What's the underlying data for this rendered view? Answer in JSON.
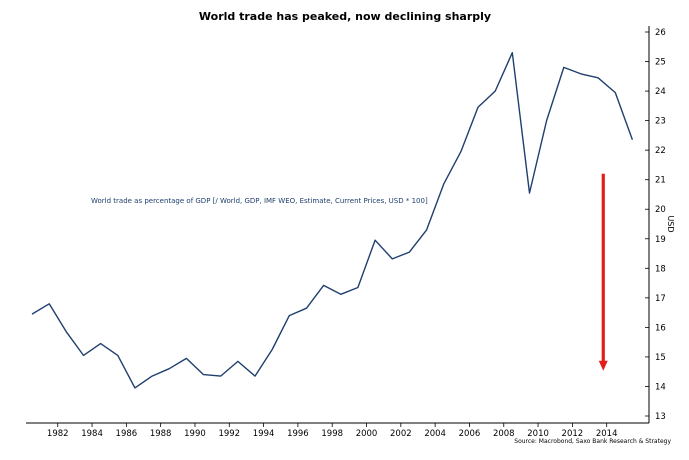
{
  "chart_data": {
    "type": "line",
    "title": "World trade has peaked, now declining sharply",
    "legend_text": "World trade as percentage of GDP [/ World, GDP, IMF WEO, Estimate, Current Prices, USD * 100]",
    "legend_placement": "middle-left",
    "ylabel": "USD",
    "y_axis_side": "right",
    "source": "Source: Macrobond, Saxo Bank Research & Strategy",
    "xlim": [
      1980.5,
      2016
    ],
    "ylim": [
      12.7,
      26.3
    ],
    "x_ticks": [
      1982,
      1984,
      1986,
      1988,
      1990,
      1992,
      1994,
      1996,
      1998,
      2000,
      2002,
      2004,
      2006,
      2008,
      2010,
      2012,
      2014
    ],
    "y_ticks": [
      13,
      14,
      15,
      16,
      17,
      18,
      19,
      20,
      21,
      22,
      23,
      24,
      25,
      26
    ],
    "grid": false,
    "line_color": "#1f3f6e",
    "arrow_color": "#e31c1c",
    "arrow": {
      "x": 2013.8,
      "y_start": 21.2,
      "y_end": 14.6
    },
    "series": [
      {
        "x": [
          1980.5,
          1981.5,
          1982.5,
          1983.5,
          1984.5,
          1985.5,
          1986.5,
          1987.5,
          1988.5,
          1989.5,
          1990.5,
          1991.5,
          1992.5,
          1993.5,
          1994.5,
          1995.5,
          1996.5,
          1997.5,
          1998.5,
          1999.5,
          2000.5,
          2001.5,
          2002.5,
          2003.5,
          2004.5,
          2005.5,
          2006.5,
          2007.5,
          2008.5,
          2009.5,
          2010.5,
          2011.5,
          2012.5,
          2013.5,
          2014.5,
          2015.5
        ],
        "values": [
          16.45,
          16.8,
          15.85,
          15.05,
          15.45,
          15.05,
          13.95,
          14.35,
          14.6,
          14.95,
          14.4,
          14.35,
          14.85,
          14.35,
          15.25,
          16.4,
          16.65,
          17.42,
          17.12,
          17.35,
          18.95,
          18.32,
          18.55,
          19.3,
          20.85,
          21.95,
          23.45,
          24.0,
          25.3,
          20.55,
          23.0,
          24.8,
          24.58,
          24.45,
          23.95,
          22.35
        ]
      }
    ]
  }
}
